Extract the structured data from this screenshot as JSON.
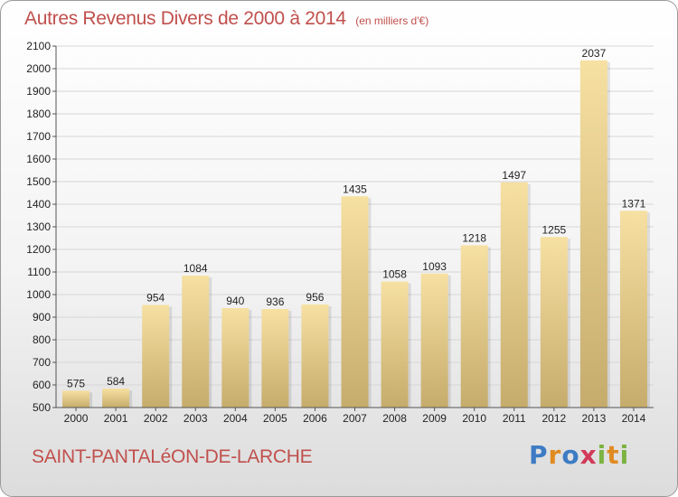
{
  "header": {
    "title": "Autres Revenus Divers de 2000 à 2014",
    "unit": "(en milliers d'€)"
  },
  "footer": {
    "commune": "SAINT-PANTALéON-DE-LARCHE",
    "logo": "Proxiti"
  },
  "colors": {
    "title": "#c0504d",
    "bar_light": "#f6e0a2",
    "bar_dark": "#c6ac6c",
    "grid": "#d6d6d6"
  },
  "chart_data": {
    "type": "bar",
    "title": "Autres Revenus Divers de 2000 à 2014",
    "subtitle": "(en milliers d'€)",
    "categories": [
      "2000",
      "2001",
      "2002",
      "2003",
      "2004",
      "2005",
      "2006",
      "2007",
      "2008",
      "2009",
      "2010",
      "2011",
      "2012",
      "2013",
      "2014"
    ],
    "values": [
      575,
      584,
      954,
      1084,
      940,
      936,
      956,
      1435,
      1058,
      1093,
      1218,
      1497,
      1255,
      2037,
      1371
    ],
    "ylim": [
      500,
      2100
    ],
    "yticks": [
      500,
      600,
      700,
      800,
      900,
      1000,
      1100,
      1200,
      1300,
      1400,
      1500,
      1600,
      1700,
      1800,
      1900,
      2000,
      2100
    ],
    "grid": true,
    "legend": "none"
  }
}
